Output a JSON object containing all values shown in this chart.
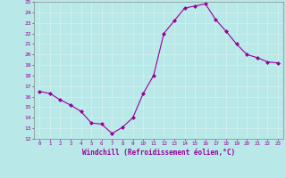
{
  "x": [
    0,
    1,
    2,
    3,
    4,
    5,
    6,
    7,
    8,
    9,
    10,
    11,
    12,
    13,
    14,
    15,
    16,
    17,
    18,
    19,
    20,
    21,
    22,
    23
  ],
  "y": [
    16.5,
    16.3,
    15.7,
    15.2,
    14.6,
    13.5,
    13.4,
    12.5,
    13.1,
    14.0,
    16.3,
    18.0,
    22.0,
    23.2,
    24.4,
    24.6,
    24.8,
    23.3,
    22.2,
    21.0,
    20.0,
    19.7,
    19.3,
    19.2
  ],
  "ylim": [
    12,
    25
  ],
  "yticks": [
    12,
    13,
    14,
    15,
    16,
    17,
    18,
    19,
    20,
    21,
    22,
    23,
    24,
    25
  ],
  "xticks": [
    0,
    1,
    2,
    3,
    4,
    5,
    6,
    7,
    8,
    9,
    10,
    11,
    12,
    13,
    14,
    15,
    16,
    17,
    18,
    19,
    20,
    21,
    22,
    23
  ],
  "xlabel": "Windchill (Refroidissement éolien,°C)",
  "line_color": "#990099",
  "marker": "D",
  "marker_size": 2.0,
  "bg_color": "#b8e8e8",
  "grid_color": "#d0f0f0",
  "tick_color": "#990099",
  "label_color": "#990099",
  "figsize": [
    3.2,
    2.0
  ],
  "dpi": 100
}
